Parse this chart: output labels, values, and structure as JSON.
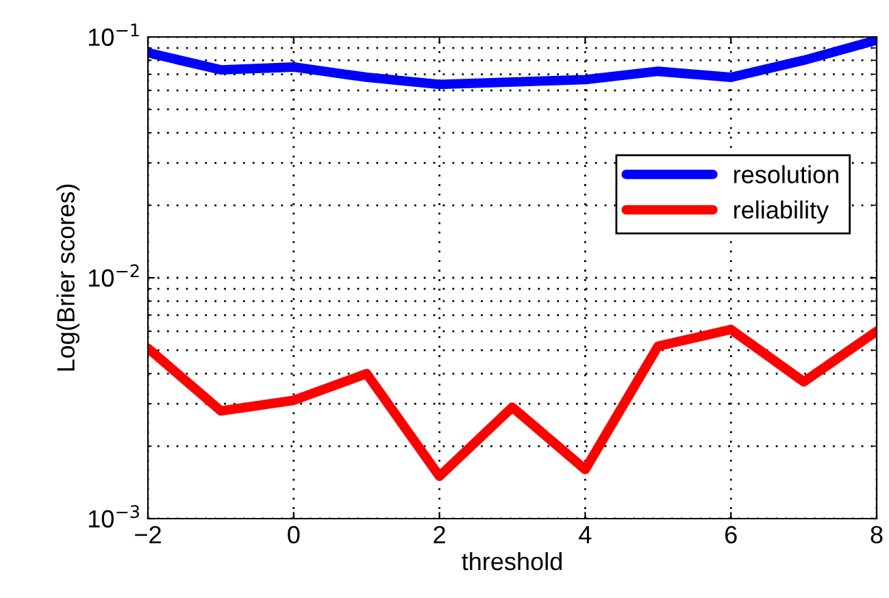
{
  "chart_data": {
    "type": "line",
    "xlabel": "threshold",
    "ylabel": "Log(Brier scores)",
    "x": [
      -2,
      -1,
      0,
      1,
      2,
      3,
      4,
      5,
      6,
      7,
      8
    ],
    "series": [
      {
        "name": "resolution",
        "color": "#0000ff",
        "values": [
          0.086,
          0.073,
          0.075,
          0.068,
          0.0635,
          0.065,
          0.0665,
          0.072,
          0.068,
          0.08,
          0.097
        ]
      },
      {
        "name": "reliability",
        "color": "#ff0000",
        "values": [
          0.0051,
          0.0028,
          0.0031,
          0.004,
          0.0015,
          0.0029,
          0.0016,
          0.0052,
          0.0061,
          0.0037,
          0.006
        ]
      }
    ],
    "log": "y",
    "xlim": [
      -2,
      8
    ],
    "xticks": [
      -2,
      0,
      2,
      4,
      6,
      8
    ],
    "ylim": [
      0.001,
      0.1
    ],
    "yticks": [
      {
        "value": 0.001,
        "label": "10$^{−3}$"
      },
      {
        "value": 0.01,
        "label": "10$^{−2}$"
      },
      {
        "value": 0.1,
        "label": "10$^{−1}$"
      }
    ],
    "grid": true,
    "legend": "top right",
    "line_style": "solid",
    "marker": "none"
  }
}
